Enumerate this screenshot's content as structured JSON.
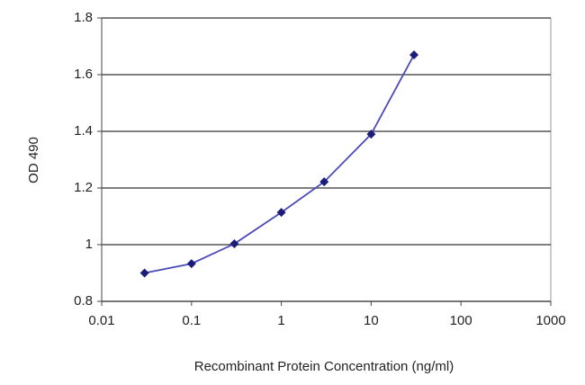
{
  "chart_data": {
    "type": "line",
    "xlabel": "Recombinant Protein Concentration (ng/ml)",
    "ylabel": "OD 490",
    "xscale": "log",
    "grid": true,
    "x": [
      0.03,
      0.1,
      0.3,
      1,
      3,
      10,
      30
    ],
    "series": [
      {
        "color": "#4a4ab8",
        "marker_color": "#1c1c7a",
        "values": [
          0.9,
          0.933,
          1.003,
          1.114,
          1.222,
          1.39,
          1.67
        ]
      }
    ],
    "xlim": [
      0.01,
      1000
    ],
    "xticks": [
      0.01,
      0.1,
      1,
      10,
      100,
      1000
    ],
    "ylim": [
      0.8,
      1.8
    ],
    "yticks": [
      0.8,
      1,
      1.2,
      1.4,
      1.6,
      1.8
    ]
  }
}
